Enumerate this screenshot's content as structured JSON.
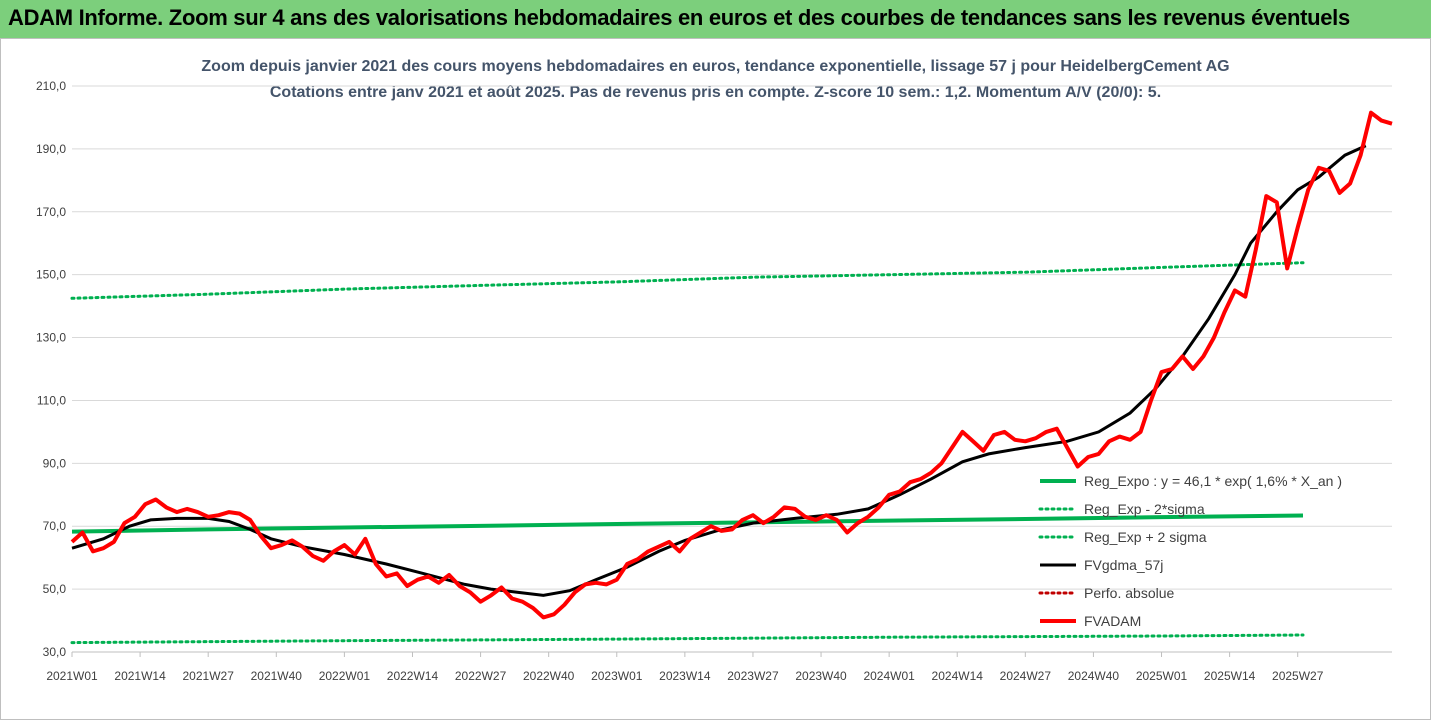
{
  "header": {
    "banner_title": "ADAM Informe. Zoom sur 4 ans des valorisations hebdomadaires en euros et des courbes de tendances sans les revenus éventuels"
  },
  "colors": {
    "banner_bg": "#7ccf7c",
    "reg_expo": "#00b050",
    "fvadam": "#ff0000",
    "fvgdma": "#000000",
    "perfo": "#c00000"
  },
  "chart_data": {
    "type": "line",
    "title": "Zoom depuis janvier 2021 des cours moyens hebdomadaires en euros, tendance exponentielle, lissage 57 j pour HeidelbergCement AG",
    "subtitle": "Cotations entre janv 2021 et août 2025.  Pas de revenus pris en compte. Z-score 10 sem.: 1,2. Momentum A/V (20/0): 5.",
    "ylim": [
      30,
      210
    ],
    "ytick_labels": [
      "30,0",
      "50,0",
      "70,0",
      "90,0",
      "110,0",
      "130,0",
      "150,0",
      "170,0",
      "190,0",
      "210,0"
    ],
    "x_tick_labels": [
      "2021W01",
      "2021W14",
      "2021W27",
      "2021W40",
      "2022W01",
      "2022W14",
      "2022W27",
      "2022W40",
      "2023W01",
      "2023W14",
      "2023W27",
      "2023W40",
      "2024W01",
      "2024W14",
      "2024W27",
      "2024W40",
      "2025W01",
      "2025W14",
      "2025W27"
    ],
    "n_weeks": 236,
    "grid": "horizontal",
    "legend_position": "bottom-right",
    "series": [
      {
        "name": "Reg_Expo : y = 46,1 * exp( 1,6% *  X_an )",
        "style": "solid-green",
        "points": [
          [
            0,
            68.3
          ],
          [
            26,
            69.0
          ],
          [
            52,
            69.6
          ],
          [
            78,
            70.1
          ],
          [
            104,
            70.7
          ],
          [
            130,
            71.2
          ],
          [
            156,
            71.8
          ],
          [
            182,
            72.3
          ],
          [
            208,
            72.9
          ],
          [
            235,
            73.4
          ]
        ]
      },
      {
        "name": "Reg_Exp - 2*sigma",
        "style": "dotted-green",
        "points": [
          [
            0,
            33.0
          ],
          [
            52,
            33.6
          ],
          [
            104,
            34.1
          ],
          [
            156,
            34.7
          ],
          [
            208,
            35.1
          ],
          [
            235,
            35.4
          ]
        ]
      },
      {
        "name": "Reg_Exp + 2 sigma",
        "style": "dotted-green",
        "points": [
          [
            0,
            142.5
          ],
          [
            26,
            143.8
          ],
          [
            52,
            145.4
          ],
          [
            78,
            146.6
          ],
          [
            104,
            147.7
          ],
          [
            130,
            149.2
          ],
          [
            156,
            150.0
          ],
          [
            182,
            150.8
          ],
          [
            208,
            152.3
          ],
          [
            235,
            153.8
          ]
        ]
      },
      {
        "name": "FVgdma_57j",
        "style": "solid-black",
        "points": [
          [
            0,
            63.0
          ],
          [
            6,
            66.0
          ],
          [
            11,
            70.0
          ],
          [
            15,
            72.0
          ],
          [
            20,
            72.5
          ],
          [
            26,
            72.5
          ],
          [
            30,
            71.5
          ],
          [
            34,
            69.0
          ],
          [
            38,
            66.0
          ],
          [
            44,
            63.5
          ],
          [
            52,
            61.0
          ],
          [
            60,
            58.0
          ],
          [
            67,
            55.0
          ],
          [
            75,
            51.5
          ],
          [
            80,
            50.0
          ],
          [
            85,
            49.0
          ],
          [
            90,
            48.0
          ],
          [
            95,
            49.5
          ],
          [
            100,
            53.0
          ],
          [
            106,
            57.0
          ],
          [
            112,
            62.0
          ],
          [
            117,
            65.5
          ],
          [
            123,
            68.5
          ],
          [
            130,
            71.0
          ],
          [
            138,
            72.5
          ],
          [
            146,
            73.8
          ],
          [
            152,
            75.5
          ],
          [
            158,
            80.0
          ],
          [
            164,
            85.0
          ],
          [
            170,
            90.5
          ],
          [
            175,
            93.0
          ],
          [
            182,
            95.0
          ],
          [
            190,
            97.0
          ],
          [
            196,
            100.0
          ],
          [
            202,
            106.0
          ],
          [
            207,
            114.0
          ],
          [
            212,
            124.0
          ],
          [
            217,
            136.0
          ],
          [
            222,
            150.0
          ],
          [
            225,
            160.0
          ],
          [
            230,
            170.0
          ],
          [
            234,
            177.0
          ],
          [
            238,
            181.0
          ],
          [
            243,
            188.0
          ],
          [
            247,
            191.0
          ]
        ]
      },
      {
        "name": "Perfo. absolue",
        "style": "dotted-red",
        "points": []
      },
      {
        "name": "FVADAM",
        "style": "solid-red",
        "points": [
          [
            0,
            65.0
          ],
          [
            2,
            68.0
          ],
          [
            4,
            62.0
          ],
          [
            6,
            63.0
          ],
          [
            8,
            65.0
          ],
          [
            10,
            71.0
          ],
          [
            12,
            73.0
          ],
          [
            14,
            77.0
          ],
          [
            16,
            78.5
          ],
          [
            18,
            76.0
          ],
          [
            20,
            74.5
          ],
          [
            22,
            75.5
          ],
          [
            24,
            74.5
          ],
          [
            26,
            73.0
          ],
          [
            28,
            73.5
          ],
          [
            30,
            74.5
          ],
          [
            32,
            74.0
          ],
          [
            34,
            72.0
          ],
          [
            36,
            67.0
          ],
          [
            38,
            63.0
          ],
          [
            40,
            64.0
          ],
          [
            42,
            65.5
          ],
          [
            44,
            63.5
          ],
          [
            46,
            60.5
          ],
          [
            48,
            59.0
          ],
          [
            50,
            62.0
          ],
          [
            52,
            64.0
          ],
          [
            54,
            61.0
          ],
          [
            56,
            66.0
          ],
          [
            58,
            58.0
          ],
          [
            60,
            54.0
          ],
          [
            62,
            55.0
          ],
          [
            64,
            51.0
          ],
          [
            66,
            53.0
          ],
          [
            68,
            54.0
          ],
          [
            70,
            52.0
          ],
          [
            72,
            54.5
          ],
          [
            74,
            51.0
          ],
          [
            76,
            49.0
          ],
          [
            78,
            46.0
          ],
          [
            80,
            48.0
          ],
          [
            82,
            50.5
          ],
          [
            84,
            47.0
          ],
          [
            86,
            46.0
          ],
          [
            88,
            44.0
          ],
          [
            90,
            41.0
          ],
          [
            92,
            42.0
          ],
          [
            94,
            45.0
          ],
          [
            96,
            49.0
          ],
          [
            98,
            51.5
          ],
          [
            100,
            52.0
          ],
          [
            102,
            51.5
          ],
          [
            104,
            53.0
          ],
          [
            106,
            58.0
          ],
          [
            108,
            59.5
          ],
          [
            110,
            62.0
          ],
          [
            112,
            63.5
          ],
          [
            114,
            65.0
          ],
          [
            116,
            62.0
          ],
          [
            118,
            66.0
          ],
          [
            120,
            68.0
          ],
          [
            122,
            70.0
          ],
          [
            124,
            68.5
          ],
          [
            126,
            69.0
          ],
          [
            128,
            72.0
          ],
          [
            130,
            73.5
          ],
          [
            132,
            71.0
          ],
          [
            134,
            73.0
          ],
          [
            136,
            76.0
          ],
          [
            138,
            75.5
          ],
          [
            140,
            73.0
          ],
          [
            142,
            72.0
          ],
          [
            144,
            73.5
          ],
          [
            146,
            72.0
          ],
          [
            148,
            68.0
          ],
          [
            150,
            71.0
          ],
          [
            152,
            73.0
          ],
          [
            154,
            76.0
          ],
          [
            156,
            80.0
          ],
          [
            158,
            81.0
          ],
          [
            160,
            84.0
          ],
          [
            162,
            85.0
          ],
          [
            164,
            87.0
          ],
          [
            166,
            90.0
          ],
          [
            168,
            95.0
          ],
          [
            170,
            100.0
          ],
          [
            172,
            97.0
          ],
          [
            174,
            94.0
          ],
          [
            176,
            99.0
          ],
          [
            178,
            100.0
          ],
          [
            180,
            97.5
          ],
          [
            182,
            97.0
          ],
          [
            184,
            98.0
          ],
          [
            186,
            100.0
          ],
          [
            188,
            101.0
          ],
          [
            190,
            95.0
          ],
          [
            192,
            89.0
          ],
          [
            194,
            92.0
          ],
          [
            196,
            93.0
          ],
          [
            198,
            97.0
          ],
          [
            200,
            98.5
          ],
          [
            202,
            97.5
          ],
          [
            204,
            100.0
          ],
          [
            206,
            110.0
          ],
          [
            208,
            119.0
          ],
          [
            210,
            120.0
          ],
          [
            212,
            124.0
          ],
          [
            214,
            120.0
          ],
          [
            216,
            124.0
          ],
          [
            218,
            130.0
          ],
          [
            220,
            138.0
          ],
          [
            222,
            145.0
          ],
          [
            224,
            143.0
          ],
          [
            226,
            158.0
          ],
          [
            228,
            175.0
          ],
          [
            230,
            173.0
          ],
          [
            232,
            152.0
          ],
          [
            234,
            165.0
          ],
          [
            236,
            177.0
          ],
          [
            238,
            184.0
          ],
          [
            240,
            183.0
          ],
          [
            242,
            176.0
          ],
          [
            244,
            179.0
          ],
          [
            246,
            188.0
          ],
          [
            248,
            201.5
          ],
          [
            250,
            199.0
          ],
          [
            252,
            198.0
          ]
        ]
      }
    ]
  }
}
